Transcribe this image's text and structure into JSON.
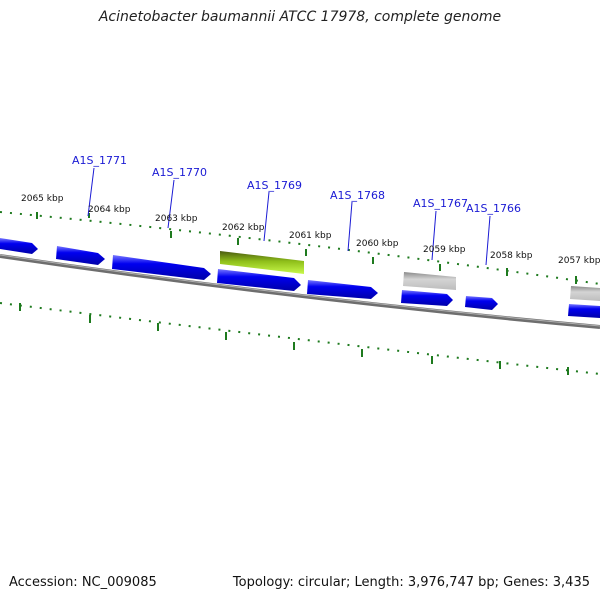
{
  "title": "Acinetobacter baumannii ATCC 17978, complete genome",
  "footer": {
    "accession": "Accession: NC_009085",
    "stats": "Topology: circular; Length: 3,976,747 bp; Genes: 3,435"
  },
  "colors": {
    "gene_cds": "#0000f0",
    "gene_highlight": "#7ab800",
    "gene_other": "#b5b5b5",
    "backbone": "#808080",
    "ticks": "#1e7a1e",
    "gene_label": "#1a1ad4"
  },
  "kbp_ticks": [
    "2065 kbp",
    "2064 kbp",
    "2063 kbp",
    "2062 kbp",
    "2061 kbp",
    "2060 kbp",
    "2059 kbp",
    "2058 kbp",
    "2057 kbp"
  ],
  "gene_labels": [
    "A1S_1771",
    "A1S_1770",
    "A1S_1769",
    "A1S_1768",
    "A1S_1767",
    "A1S_1766"
  ]
}
